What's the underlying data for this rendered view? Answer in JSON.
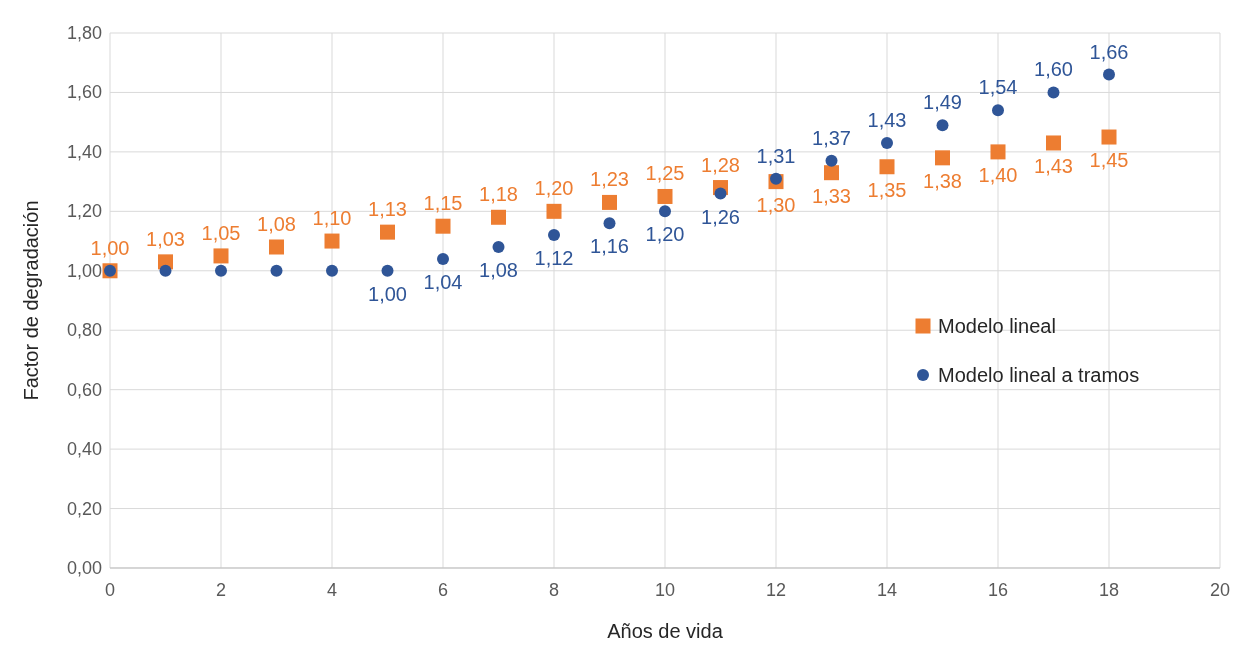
{
  "chart_data": {
    "type": "scatter",
    "xlabel": "Años de vida",
    "ylabel": "Factor de degradación",
    "xlim": [
      0,
      20
    ],
    "xticks": [
      0,
      2,
      4,
      6,
      8,
      10,
      12,
      14,
      16,
      18,
      20
    ],
    "ylim": [
      0,
      1.8
    ],
    "yticks": [
      {
        "value": 0,
        "label": "0,00"
      },
      {
        "value": 0.2,
        "label": "0,20"
      },
      {
        "value": 0.4,
        "label": "0,40"
      },
      {
        "value": 0.6,
        "label": "0,60"
      },
      {
        "value": 0.8,
        "label": "0,80"
      },
      {
        "value": 1,
        "label": "1,00"
      },
      {
        "value": 1.2,
        "label": "1,20"
      },
      {
        "value": 1.4,
        "label": "1,40"
      },
      {
        "value": 1.6,
        "label": "1,60"
      },
      {
        "value": 1.8,
        "label": "1,80"
      }
    ],
    "grid": true,
    "legend": "right",
    "series": [
      {
        "name": "Modelo lineal",
        "color": "#ed7d31",
        "marker": "square",
        "x": [
          0,
          1,
          2,
          3,
          4,
          5,
          6,
          7,
          8,
          9,
          10,
          11,
          12,
          13,
          14,
          15,
          16,
          17,
          18
        ],
        "values": [
          1.0,
          1.03,
          1.05,
          1.08,
          1.1,
          1.13,
          1.15,
          1.18,
          1.2,
          1.23,
          1.25,
          1.28,
          1.3,
          1.33,
          1.35,
          1.38,
          1.4,
          1.43,
          1.45
        ],
        "value_labels": [
          "1,00",
          "1,03",
          "1,05",
          "1,08",
          "1,10",
          "1,13",
          "1,15",
          "1,18",
          "1,20",
          "1,23",
          "1,25",
          "1,28",
          "1,30",
          "1,33",
          "1,35",
          "1,38",
          "1,40",
          "1,43",
          "1,45"
        ]
      },
      {
        "name": "Modelo lineal a tramos",
        "color": "#2f5597",
        "marker": "circle",
        "x": [
          0,
          1,
          2,
          3,
          4,
          5,
          6,
          7,
          8,
          9,
          10,
          11,
          12,
          13,
          14,
          15,
          16,
          17,
          18
        ],
        "values": [
          1.0,
          1.0,
          1.0,
          1.0,
          1.0,
          1.0,
          1.04,
          1.08,
          1.12,
          1.16,
          1.2,
          1.26,
          1.31,
          1.37,
          1.43,
          1.49,
          1.54,
          1.6,
          1.66
        ],
        "value_labels": [
          null,
          null,
          null,
          null,
          null,
          "1,00",
          "1,04",
          "1,08",
          "1,12",
          "1,16",
          "1,20",
          "1,26",
          "1,31",
          "1,37",
          "1,43",
          "1,49",
          "1,54",
          "1,60",
          "1,66"
        ]
      }
    ]
  }
}
